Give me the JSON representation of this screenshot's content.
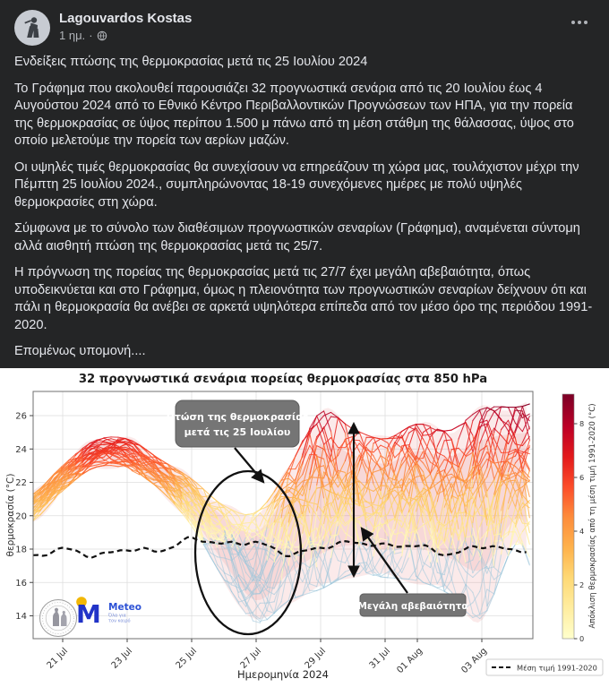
{
  "post": {
    "author": "Lagouvardos Kostas",
    "time": "1 ημ.",
    "separator": "·",
    "paragraphs": [
      "Ενδείξεις πτώσης της θερμοκρασίας μετά τις 25 Ιουλίου 2024",
      "Το Γράφημα που ακολουθεί παρουσιάζει 32 προγνωστικά σενάρια από τις 20 Ιουλίου έως 4 Αυγούστου 2024 από το Εθνικό Κέντρο Περιβαλλοντικών Προγνώσεων των ΗΠΑ, για την πορεία της θερμοκρασίας σε ύψος περίπου 1.500 μ πάνω από τη μέση στάθμη της θάλασσας, ύψος στο οποίο μελετούμε την πορεία των αερίων μαζών.",
      "Οι υψηλές τιμές θερμοκρασίας θα συνεχίσουν να επηρεάζουν τη χώρα μας, τουλάχιστον μέχρι την Πέμπτη 25 Ιουλίου 2024., συμπληρώνοντας 18-19 συνεχόμενες ημέρες με πολύ υψηλές θερμοκρασίες στη χώρα.",
      "Σύμφωνα με το σύνολο των διαθέσιμων προγνωστικών σεναρίων (Γράφημα), αναμένεται σύντομη αλλά αισθητή πτώση της θερμοκρασίας μετά τις 25/7.",
      "Η πρόγνωση της πορείας της θερμοκρασίας μετά τις 27/7 έχει μεγάλη αβεβαιότητα, όπως υποδεικνύεται και στο Γράφημα, όμως η πλειονότητα των προγνωστικών σεναρίων δείχνουν ότι και πάλι η θερμοκρασία θα ανέβει σε αρκετά υψηλότερα επίπεδα από τον μέσο όρο της περιόδου 1991-2020.",
      "Επομένως υπομονή...."
    ]
  },
  "chart_data": {
    "type": "line",
    "title": "32 προγνωστικά σενάρια πορείας θερμοκρασίας στα 850 hPa",
    "xlabel": "Ημερομηνία 2024",
    "ylabel": "θερμοκρασία (°C)",
    "legend_label": "Μέση τιμή 1991-2020",
    "colorbar_label": "Απόκλιση θερμοκρασίας από τη μέση τιμή 1991-2020 (°C)",
    "colorbar_ticks": [
      0,
      2,
      4,
      6,
      8
    ],
    "colorbar_max": 9.1,
    "n_scenarios": 32,
    "ylim": [
      12.6,
      27.45
    ],
    "yticks": [
      14,
      16,
      18,
      20,
      22,
      24,
      26
    ],
    "x_tick_days": [
      1,
      3,
      5,
      7,
      9,
      11,
      12,
      14
    ],
    "x_tick_labels": [
      "21 Jul",
      "23 Jul",
      "25 Jul",
      "27 Jul",
      "29 Jul",
      "31 Jul",
      "01 Aug",
      "03 Aug"
    ],
    "dates": [
      "20 Jul",
      "21 Jul",
      "22 Jul",
      "23 Jul",
      "24 Jul",
      "25 Jul",
      "26 Jul",
      "27 Jul",
      "28 Jul",
      "29 Jul",
      "30 Jul",
      "31 Jul",
      "01 Aug",
      "02 Aug",
      "03 Aug",
      "04 Aug"
    ],
    "ensemble_median": [
      20.5,
      22.3,
      23.7,
      23.8,
      22.5,
      20.9,
      18.8,
      17.1,
      19.2,
      21.2,
      21.1,
      20.7,
      21.2,
      21.0,
      21.5,
      22.3
    ],
    "ensemble_min": [
      19.6,
      21.5,
      22.9,
      22.8,
      21.6,
      19.4,
      16.2,
      13.6,
      14.9,
      15.6,
      16.5,
      16.3,
      16.1,
      15.3,
      13.9,
      18.2
    ],
    "ensemble_max": [
      21.2,
      23.0,
      24.5,
      24.6,
      23.4,
      22.2,
      20.6,
      20.2,
      22.8,
      26.2,
      25.2,
      24.6,
      25.5,
      25.1,
      26.4,
      26.5
    ],
    "climatology": [
      17.5,
      18.0,
      17.6,
      18.0,
      17.9,
      18.6,
      18.3,
      18.4,
      17.7,
      18.1,
      18.4,
      18.2,
      18.2,
      17.7,
      18.2,
      17.9
    ],
    "annotation_drop": {
      "line1": "Πτώση της θερμοκρασίας",
      "line2": "μετά τις 25 Ιουλίου"
    },
    "annotation_uncertainty": {
      "text": "Μεγάλη αβεβαιότητα"
    },
    "colormap_stops": [
      "#ffffcc",
      "#ffeda0",
      "#fed976",
      "#feb24c",
      "#fd8d3c",
      "#fc4e2a",
      "#e31a1c",
      "#bd0026",
      "#800026"
    ],
    "below_mean_color": "#9fc6da",
    "envelope_fill": "rgba(224,104,104,0.14)",
    "mean_line_color": "#111111",
    "annotation_box_color": "#757575"
  },
  "logos": {
    "meteo": {
      "m": "M",
      "name": "Meteo",
      "tagline1": "Όλα για",
      "tagline2": "τον καιρό"
    }
  }
}
